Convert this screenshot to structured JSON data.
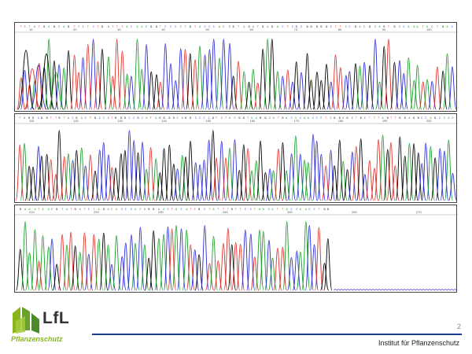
{
  "chart_data": [
    {
      "type": "line",
      "title": "",
      "xlabel": "",
      "ylabel": "",
      "x_tick_labels": [
        "10",
        "20",
        "30",
        "40",
        "50",
        "60",
        "70",
        "80",
        "90",
        "100"
      ],
      "series": [
        {
          "color": "#000000"
        },
        {
          "color": "#2a2ad8"
        },
        {
          "color": "#1a9e2a"
        },
        {
          "color": "#e0302a"
        }
      ],
      "peak_start_position": 10,
      "peak_count": 90,
      "grid": false
    },
    {
      "type": "line",
      "title": "",
      "xlabel": "",
      "ylabel": "",
      "x_tick_labels": [
        "110",
        "120",
        "130",
        "140",
        "150",
        "160",
        "170",
        "180",
        "190",
        "200"
      ],
      "series": [
        {
          "color": "#000000"
        },
        {
          "color": "#2a2ad8"
        },
        {
          "color": "#1a9e2a"
        },
        {
          "color": "#e0302a"
        }
      ],
      "peak_start_position": 105,
      "peak_count": 100,
      "grid": false
    },
    {
      "type": "line",
      "title": "",
      "xlabel": "",
      "ylabel": "",
      "x_tick_labels": [
        "210",
        "220",
        "230",
        "240",
        "250",
        "260",
        "270"
      ],
      "series": [
        {
          "color": "#000000"
        },
        {
          "color": "#2a2ad8"
        },
        {
          "color": "#1a9e2a"
        },
        {
          "color": "#e0302a"
        }
      ],
      "peak_start_position": 205,
      "peak_count": 68,
      "signal_end_fraction": 0.72,
      "grid": false
    }
  ],
  "branding": {
    "logo_text": "LfL",
    "logo_subtitle": "Pflanzenschutz",
    "logo_green": "#8ab61c",
    "logo_dark_green": "#4a8a2a",
    "accent_line_color": "#1a3c8c"
  },
  "footer": {
    "page_number": "2",
    "institute": "Institut für Pflanzenschutz"
  }
}
